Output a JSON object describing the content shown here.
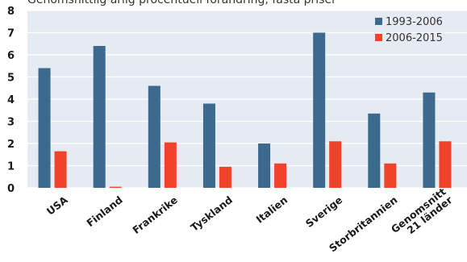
{
  "chart_data": {
    "type": "bar",
    "subtitle": "Genomsnittlig årlig procentuell förändring, fasta priser",
    "categories": [
      [
        "USA"
      ],
      [
        "Finland"
      ],
      [
        "Frankrike"
      ],
      [
        "Tyskland"
      ],
      [
        "Italien"
      ],
      [
        "Sverige"
      ],
      [
        "Storbritannien"
      ],
      [
        "Genomsnitt",
        "21 länder"
      ]
    ],
    "series": [
      {
        "name": "1993-2006",
        "color": "#3b6a8c",
        "values": [
          5.4,
          6.4,
          4.6,
          3.8,
          2.0,
          7.0,
          3.35,
          4.3
        ]
      },
      {
        "name": "2006-2015",
        "color": "#f0442a",
        "values": [
          1.65,
          0.05,
          2.05,
          0.95,
          1.1,
          2.1,
          1.1,
          2.1
        ]
      }
    ],
    "y_ticks": [
      "0",
      "1",
      "2",
      "3",
      "4",
      "5",
      "6",
      "7",
      "8"
    ],
    "ylim": [
      0,
      8
    ],
    "grid": true,
    "legend_position": "top-right",
    "plot_background": "#e6ebf3",
    "grid_color": "#ffffff"
  }
}
